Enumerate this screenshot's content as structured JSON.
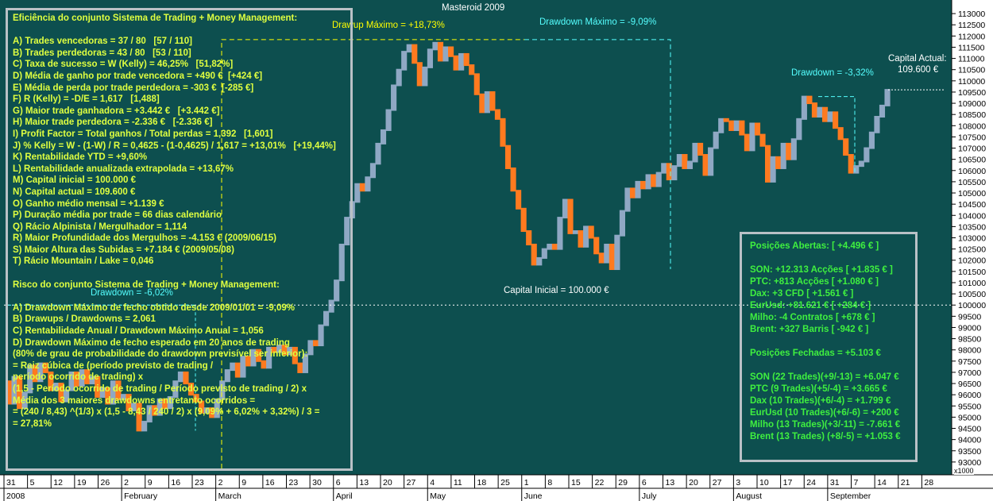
{
  "chart_data": {
    "type": "line",
    "title": "Masteroid 2009",
    "subtitle": "",
    "xlabel": "",
    "ylabel": "",
    "y_axis_unit": "€",
    "ylim": [
      92500,
      113500
    ],
    "y_ticks": [
      93000,
      93500,
      94000,
      94500,
      95000,
      95500,
      96000,
      96500,
      97000,
      97500,
      98000,
      98500,
      99000,
      99500,
      100000,
      100500,
      101000,
      101500,
      102000,
      102500,
      103000,
      103500,
      104000,
      104500,
      105000,
      105500,
      106000,
      106500,
      107000,
      107500,
      108000,
      108500,
      109000,
      109500,
      110000,
      110500,
      111000,
      111500,
      112000,
      112500,
      113000
    ],
    "y_tick_labels": [
      "93000",
      "93500",
      "94000",
      "94500",
      "95000",
      "95500",
      "96000",
      "96500",
      "97000",
      "97500",
      "98000",
      "98500",
      "99000",
      "99500",
      "100000",
      "100500",
      "101000",
      "101500",
      "102000",
      "102500",
      "103000",
      "103500",
      "104000",
      "104500",
      "105000",
      "105500",
      "106000",
      "106500",
      "107000",
      "107500",
      "108000",
      "108500",
      "109000",
      "109500",
      "110000",
      "110500",
      "111000",
      "111500",
      "112000",
      "112500",
      "113000"
    ],
    "y_scale_note": "x1000",
    "x_day_labels": [
      "31",
      "5",
      "12",
      "19",
      "26",
      "2",
      "9",
      "16",
      "23",
      "2",
      "9",
      "16",
      "23",
      "30",
      "6",
      "13",
      "20",
      "27",
      "4",
      "11",
      "18",
      "25",
      "1",
      "8",
      "15",
      "22",
      "29",
      "6",
      "13",
      "20",
      "27",
      "3",
      "10",
      "17",
      "24",
      "31",
      "7",
      "14",
      "21",
      "28"
    ],
    "x_month_labels": [
      "2008",
      "February",
      "March",
      "April",
      "May",
      "June",
      "July",
      "August",
      "September"
    ],
    "grid": false,
    "legend": "none",
    "series": [
      {
        "name": "",
        "values": [
          95600,
          96800,
          95400,
          96100,
          97300,
          96600,
          97400,
          97000,
          96200,
          96500,
          95700,
          96200,
          97000,
          96400,
          97100,
          96500,
          96800,
          95900,
          96300,
          95600,
          96600,
          95800,
          96000,
          95300,
          95600,
          94400,
          94800,
          95500,
          95100,
          95800,
          95400,
          95900,
          96600,
          97000,
          96500,
          96000,
          95700,
          95200,
          95400,
          95000,
          95800,
          96600,
          97100,
          97400,
          96800,
          97700,
          97300,
          98000,
          97500,
          97200,
          98100,
          97900,
          98200,
          97800,
          98100,
          97400,
          97000,
          97800,
          98400,
          98200,
          99100,
          99700,
          100200,
          101100,
          102700,
          103900,
          104600,
          105400,
          105100,
          105700,
          106300,
          107200,
          107800,
          108700,
          109800,
          110500,
          111300,
          111600,
          110800,
          109800,
          110600,
          111400,
          111700,
          110900,
          111500,
          111100,
          110500,
          111200,
          110700,
          110300,
          109400,
          108600,
          109500,
          108700,
          108300,
          107100,
          106100,
          105100,
          104300,
          103300,
          102700,
          101800,
          102100,
          102500,
          102700,
          102500,
          103900,
          104700,
          103200,
          103300,
          102600,
          103500,
          103000,
          102300,
          101900,
          102700,
          101600,
          103100,
          104200,
          105200,
          104800,
          105500,
          105200,
          105800,
          105300,
          105900,
          106300,
          105600,
          106200,
          106700,
          106100,
          106400,
          107200,
          106700,
          105800,
          107000,
          107700,
          108300,
          108200,
          107800,
          108200,
          107600,
          106900,
          108100,
          107600,
          107100,
          105500,
          106600,
          106100,
          107200,
          106500,
          107400,
          108300,
          109300,
          109000,
          108400,
          108800,
          108200,
          108600,
          107900,
          107400,
          106700,
          105900,
          106200,
          106400,
          107000,
          107700,
          108400,
          108900,
          109600
        ],
        "color": "#8fa8c4"
      }
    ],
    "y_start": 96600,
    "reference_line": {
      "label": "Capital Inicial = 100.000 €",
      "value": 100000
    },
    "annotations": {
      "drawup_max": "Drawup Máximo = +18,73%",
      "drawdown_max": "Drawdown Máximo = -9,09%",
      "drawdown_current": "Drawdown = -3,32%",
      "drawdown_early": "Drawdown = -6,02%",
      "capital_label": "Capital Actual:",
      "capital_value": "109.600 €"
    },
    "colors": {
      "up": "#8fa8c4",
      "down": "#ff7a1f",
      "background": "#0d4f4f",
      "axis": "#ffffff",
      "box_text": "#dfff40",
      "positions_text": "#3ff03f",
      "drawup": "#ffff00",
      "drawdown": "#55ffff"
    }
  },
  "left_panel": {
    "lines": [
      "Eficiência do conjunto Sistema de Trading + Money Management:",
      "",
      "A) Trades vencedoras = 37 / 80   [57 / 110]",
      "B) Trades perdedoras = 43 / 80   [53 / 110]",
      "C) Taxa de sucesso = W (Kelly) = 46,25%   [51,82%]",
      "D) Média de ganho por trade vencedora = +490 €  [+424 €]",
      "E) Média de perda por trade perdedora = -303 €  [-285 €]",
      "F) R (Kelly) = -D/E = 1,617   [1,488]",
      "G) Maior trade ganhadora = +3.442 €   [+3.442 €]",
      "H) Maior trade perdedora = -2.336 €   [-2.336 €]",
      "I) Profit Factor = Total ganhos / Total perdas = 1,392   [1,601]",
      "J) % Kelly = W - (1-W) / R = 0,4625 - (1-0,4625) / 1,617 = +13,01%   [+19,44%]",
      "K) Rentabilidade YTD = +9,60%",
      "L) Rentabilidade anualizada extrapolada = +13,67%",
      "M) Capital inicial = 100.000 €",
      "N) Capital actual = 109.600 €",
      "O) Ganho médio mensal = +1.139 €",
      "P) Duração média por trade = 66 dias calendário",
      "Q) Rácio Alpinista / Mergulhador = 1,114",
      "R) Maior Profundidade dos Mergulhos = -4.153 € (2009/06/15)",
      "S) Maior Altura das Subidas = +7.184 € (2009/05/08)",
      "T) Rácio Mountain / Lake = 0,046",
      "",
      "Risco do conjunto Sistema de Trading + Money Management:",
      "",
      "A) Drawdown Máximo de fecho obtido desde 2009/01/01 = -9,09%",
      "B) Drawups / Drawdowns = 2,061",
      "C) Rentabilidade Anual / Drawdown Máximo Anual = 1,056",
      "D) Drawdown Máximo de fecho esperado em 20 anos de trading",
      "(80% de grau de probabilidade do drawdown previsível ser inferior):",
      "= Raiz cúbica de (período previsto de trading /",
      "período ocorrido de trading) x",
      "(1,5 - Período ocorrido de trading / Período previsto de trading / 2) x",
      "Média dos 3 maiores drawdowns entretanto ocorridos =",
      "= (240 / 8,43) ^(1/3) x (1,5 - 8,43 / 240 / 2) x (9,09% + 6,02% + 3,32%) / 3 =",
      "= 27,81%"
    ]
  },
  "right_panel": {
    "lines": [
      "Posições Abertas: [ +4.496 € ]",
      "",
      "SON: +12.313 Acções [ +1.835 € ]",
      "PTC: +813 Acções [ +1.080 € ]",
      "Dax: +3 CFD [ +1.561 € ]",
      "EurUsd: +81.621 € [ +284 € ]",
      "Milho: -4 Contratos [ +678 € ]",
      "Brent: +327 Barris [ -942 € ]",
      "",
      "Posições Fechadas = +5.103 €",
      "",
      "SON (22 Trades)(+9/-13) = +6.047 €",
      "PTC (9 Trades)(+5/-4) = +3.665 €",
      "Dax (10 Trades)(+6/-4) = +1.799 €",
      "EurUsd (10 Trades)(+6/-6) = +200 €",
      "Milho (13 Trades)(+3/-11) = -7.661 €",
      "Brent (13 Trades) (+8/-5) = +1.053 €"
    ]
  }
}
